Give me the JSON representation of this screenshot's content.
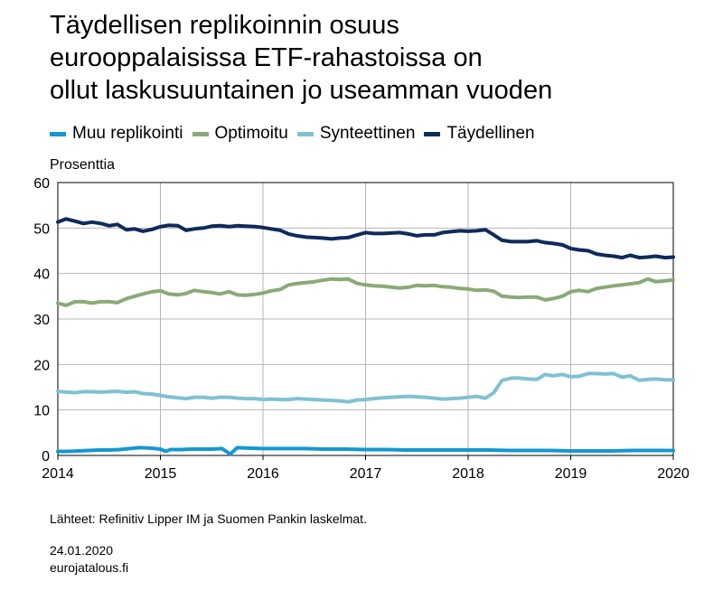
{
  "title_lines": [
    "Täydellisen replikoinnin osuus",
    "eurooppalaisissa ETF-rahastoissa on",
    "ollut laskusuuntainen jo useamman vuoden"
  ],
  "unit_label": "Prosenttia",
  "source_note": "Lähteet: Refinitiv Lipper IM ja Suomen Pankin laskelmat.",
  "date": "24.01.2020",
  "website": "eurojatalous.fi",
  "chart_data": {
    "type": "line",
    "xlim": [
      2014,
      2020
    ],
    "ylim": [
      0,
      60
    ],
    "x_ticks": [
      2014,
      2015,
      2016,
      2017,
      2018,
      2019,
      2020
    ],
    "y_ticks": [
      0,
      10,
      20,
      30,
      40,
      50,
      60
    ],
    "grid": true,
    "legend_position": "top",
    "series": [
      {
        "name": "Muu replikointi",
        "color": "#1597d4",
        "points": [
          [
            2014.0,
            0.9
          ],
          [
            2014.1,
            0.9
          ],
          [
            2014.2,
            1.0
          ],
          [
            2014.3,
            1.1
          ],
          [
            2014.4,
            1.2
          ],
          [
            2014.5,
            1.2
          ],
          [
            2014.6,
            1.3
          ],
          [
            2014.7,
            1.5
          ],
          [
            2014.8,
            1.7
          ],
          [
            2014.9,
            1.6
          ],
          [
            2015.0,
            1.4
          ],
          [
            2015.05,
            0.9
          ],
          [
            2015.1,
            1.3
          ],
          [
            2015.2,
            1.3
          ],
          [
            2015.3,
            1.4
          ],
          [
            2015.4,
            1.4
          ],
          [
            2015.5,
            1.4
          ],
          [
            2015.6,
            1.5
          ],
          [
            2015.68,
            0.3
          ],
          [
            2015.75,
            1.7
          ],
          [
            2015.85,
            1.6
          ],
          [
            2016.0,
            1.5
          ],
          [
            2016.2,
            1.5
          ],
          [
            2016.4,
            1.5
          ],
          [
            2016.6,
            1.4
          ],
          [
            2016.8,
            1.4
          ],
          [
            2017.0,
            1.3
          ],
          [
            2017.2,
            1.3
          ],
          [
            2017.4,
            1.2
          ],
          [
            2017.6,
            1.2
          ],
          [
            2017.8,
            1.2
          ],
          [
            2018.0,
            1.2
          ],
          [
            2018.2,
            1.2
          ],
          [
            2018.4,
            1.1
          ],
          [
            2018.6,
            1.1
          ],
          [
            2018.8,
            1.1
          ],
          [
            2019.0,
            1.0
          ],
          [
            2019.2,
            1.0
          ],
          [
            2019.4,
            1.0
          ],
          [
            2019.6,
            1.1
          ],
          [
            2019.8,
            1.1
          ],
          [
            2020.0,
            1.1
          ]
        ]
      },
      {
        "name": "Optimoitu",
        "color": "#8aaa78",
        "points": [
          [
            2014.0,
            33.5
          ],
          [
            2014.08,
            33.0
          ],
          [
            2014.17,
            33.8
          ],
          [
            2014.25,
            33.8
          ],
          [
            2014.33,
            33.5
          ],
          [
            2014.42,
            33.8
          ],
          [
            2014.5,
            33.8
          ],
          [
            2014.58,
            33.6
          ],
          [
            2014.67,
            34.5
          ],
          [
            2014.75,
            35.0
          ],
          [
            2014.83,
            35.5
          ],
          [
            2014.92,
            36.0
          ],
          [
            2015.0,
            36.2
          ],
          [
            2015.08,
            35.5
          ],
          [
            2015.17,
            35.3
          ],
          [
            2015.25,
            35.6
          ],
          [
            2015.33,
            36.3
          ],
          [
            2015.42,
            36.0
          ],
          [
            2015.5,
            35.8
          ],
          [
            2015.58,
            35.5
          ],
          [
            2015.67,
            36.0
          ],
          [
            2015.75,
            35.3
          ],
          [
            2015.83,
            35.2
          ],
          [
            2015.92,
            35.4
          ],
          [
            2016.0,
            35.7
          ],
          [
            2016.08,
            36.2
          ],
          [
            2016.17,
            36.5
          ],
          [
            2016.25,
            37.5
          ],
          [
            2016.33,
            37.8
          ],
          [
            2016.42,
            38.0
          ],
          [
            2016.5,
            38.2
          ],
          [
            2016.58,
            38.5
          ],
          [
            2016.67,
            38.8
          ],
          [
            2016.75,
            38.7
          ],
          [
            2016.83,
            38.8
          ],
          [
            2016.92,
            37.8
          ],
          [
            2017.0,
            37.5
          ],
          [
            2017.08,
            37.3
          ],
          [
            2017.17,
            37.2
          ],
          [
            2017.25,
            37.0
          ],
          [
            2017.33,
            36.8
          ],
          [
            2017.42,
            37.0
          ],
          [
            2017.5,
            37.4
          ],
          [
            2017.58,
            37.3
          ],
          [
            2017.67,
            37.4
          ],
          [
            2017.75,
            37.1
          ],
          [
            2017.83,
            37.0
          ],
          [
            2017.92,
            36.7
          ],
          [
            2018.0,
            36.6
          ],
          [
            2018.08,
            36.3
          ],
          [
            2018.17,
            36.4
          ],
          [
            2018.25,
            36.1
          ],
          [
            2018.33,
            35.0
          ],
          [
            2018.42,
            34.8
          ],
          [
            2018.5,
            34.7
          ],
          [
            2018.58,
            34.8
          ],
          [
            2018.67,
            34.8
          ],
          [
            2018.75,
            34.2
          ],
          [
            2018.83,
            34.5
          ],
          [
            2018.92,
            35.0
          ],
          [
            2019.0,
            36.0
          ],
          [
            2019.08,
            36.3
          ],
          [
            2019.17,
            36.0
          ],
          [
            2019.25,
            36.7
          ],
          [
            2019.33,
            37.0
          ],
          [
            2019.42,
            37.3
          ],
          [
            2019.5,
            37.5
          ],
          [
            2019.58,
            37.7
          ],
          [
            2019.67,
            38.0
          ],
          [
            2019.75,
            38.8
          ],
          [
            2019.83,
            38.2
          ],
          [
            2019.92,
            38.4
          ],
          [
            2020.0,
            38.6
          ]
        ]
      },
      {
        "name": "Synteettinen",
        "color": "#7fc2d1",
        "points": [
          [
            2014.0,
            14.1
          ],
          [
            2014.08,
            13.9
          ],
          [
            2014.17,
            13.8
          ],
          [
            2014.25,
            14.0
          ],
          [
            2014.33,
            14.0
          ],
          [
            2014.42,
            13.9
          ],
          [
            2014.5,
            14.0
          ],
          [
            2014.58,
            14.1
          ],
          [
            2014.67,
            13.9
          ],
          [
            2014.75,
            14.0
          ],
          [
            2014.83,
            13.6
          ],
          [
            2014.92,
            13.5
          ],
          [
            2015.0,
            13.2
          ],
          [
            2015.08,
            12.9
          ],
          [
            2015.17,
            12.7
          ],
          [
            2015.25,
            12.5
          ],
          [
            2015.33,
            12.8
          ],
          [
            2015.42,
            12.8
          ],
          [
            2015.5,
            12.6
          ],
          [
            2015.58,
            12.8
          ],
          [
            2015.67,
            12.8
          ],
          [
            2015.75,
            12.6
          ],
          [
            2015.83,
            12.5
          ],
          [
            2015.92,
            12.5
          ],
          [
            2016.0,
            12.3
          ],
          [
            2016.08,
            12.4
          ],
          [
            2016.17,
            12.3
          ],
          [
            2016.25,
            12.3
          ],
          [
            2016.33,
            12.5
          ],
          [
            2016.42,
            12.4
          ],
          [
            2016.5,
            12.3
          ],
          [
            2016.58,
            12.2
          ],
          [
            2016.67,
            12.1
          ],
          [
            2016.75,
            12.0
          ],
          [
            2016.83,
            11.8
          ],
          [
            2016.92,
            12.2
          ],
          [
            2017.0,
            12.3
          ],
          [
            2017.08,
            12.5
          ],
          [
            2017.17,
            12.7
          ],
          [
            2017.25,
            12.8
          ],
          [
            2017.33,
            12.9
          ],
          [
            2017.42,
            13.0
          ],
          [
            2017.5,
            12.9
          ],
          [
            2017.58,
            12.8
          ],
          [
            2017.67,
            12.6
          ],
          [
            2017.75,
            12.4
          ],
          [
            2017.83,
            12.5
          ],
          [
            2017.92,
            12.6
          ],
          [
            2018.0,
            12.8
          ],
          [
            2018.08,
            13.0
          ],
          [
            2018.17,
            12.6
          ],
          [
            2018.25,
            13.8
          ],
          [
            2018.33,
            16.5
          ],
          [
            2018.42,
            17.0
          ],
          [
            2018.5,
            17.0
          ],
          [
            2018.58,
            16.8
          ],
          [
            2018.67,
            16.7
          ],
          [
            2018.75,
            17.8
          ],
          [
            2018.83,
            17.5
          ],
          [
            2018.92,
            17.8
          ],
          [
            2019.0,
            17.3
          ],
          [
            2019.08,
            17.4
          ],
          [
            2019.17,
            18.0
          ],
          [
            2019.25,
            18.0
          ],
          [
            2019.33,
            17.9
          ],
          [
            2019.42,
            18.0
          ],
          [
            2019.5,
            17.2
          ],
          [
            2019.58,
            17.5
          ],
          [
            2019.67,
            16.5
          ],
          [
            2019.75,
            16.7
          ],
          [
            2019.83,
            16.8
          ],
          [
            2019.92,
            16.6
          ],
          [
            2020.0,
            16.6
          ]
        ]
      },
      {
        "name": "Täydellinen",
        "color": "#102a5b",
        "points": [
          [
            2014.0,
            51.3
          ],
          [
            2014.08,
            52.0
          ],
          [
            2014.17,
            51.5
          ],
          [
            2014.25,
            51.0
          ],
          [
            2014.33,
            51.3
          ],
          [
            2014.42,
            51.0
          ],
          [
            2014.5,
            50.5
          ],
          [
            2014.58,
            50.8
          ],
          [
            2014.67,
            49.6
          ],
          [
            2014.75,
            49.8
          ],
          [
            2014.83,
            49.3
          ],
          [
            2014.92,
            49.7
          ],
          [
            2015.0,
            50.3
          ],
          [
            2015.08,
            50.6
          ],
          [
            2015.17,
            50.5
          ],
          [
            2015.25,
            49.5
          ],
          [
            2015.33,
            49.8
          ],
          [
            2015.42,
            50.0
          ],
          [
            2015.5,
            50.4
          ],
          [
            2015.58,
            50.5
          ],
          [
            2015.67,
            50.3
          ],
          [
            2015.75,
            50.5
          ],
          [
            2015.83,
            50.4
          ],
          [
            2015.92,
            50.3
          ],
          [
            2016.0,
            50.1
          ],
          [
            2016.08,
            49.8
          ],
          [
            2016.17,
            49.5
          ],
          [
            2016.25,
            48.7
          ],
          [
            2016.33,
            48.3
          ],
          [
            2016.42,
            48.0
          ],
          [
            2016.5,
            47.9
          ],
          [
            2016.58,
            47.8
          ],
          [
            2016.67,
            47.6
          ],
          [
            2016.75,
            47.8
          ],
          [
            2016.83,
            47.9
          ],
          [
            2016.92,
            48.5
          ],
          [
            2017.0,
            49.0
          ],
          [
            2017.08,
            48.8
          ],
          [
            2017.17,
            48.8
          ],
          [
            2017.25,
            48.9
          ],
          [
            2017.33,
            49.0
          ],
          [
            2017.42,
            48.7
          ],
          [
            2017.5,
            48.3
          ],
          [
            2017.58,
            48.5
          ],
          [
            2017.67,
            48.5
          ],
          [
            2017.75,
            49.0
          ],
          [
            2017.83,
            49.2
          ],
          [
            2017.92,
            49.4
          ],
          [
            2018.0,
            49.3
          ],
          [
            2018.08,
            49.4
          ],
          [
            2018.17,
            49.6
          ],
          [
            2018.25,
            48.5
          ],
          [
            2018.33,
            47.3
          ],
          [
            2018.42,
            47.0
          ],
          [
            2018.5,
            47.0
          ],
          [
            2018.58,
            47.0
          ],
          [
            2018.67,
            47.2
          ],
          [
            2018.75,
            46.8
          ],
          [
            2018.83,
            46.6
          ],
          [
            2018.92,
            46.3
          ],
          [
            2019.0,
            45.5
          ],
          [
            2019.08,
            45.2
          ],
          [
            2019.17,
            45.0
          ],
          [
            2019.25,
            44.3
          ],
          [
            2019.33,
            44.0
          ],
          [
            2019.42,
            43.8
          ],
          [
            2019.5,
            43.5
          ],
          [
            2019.58,
            44.0
          ],
          [
            2019.67,
            43.5
          ],
          [
            2019.75,
            43.6
          ],
          [
            2019.83,
            43.8
          ],
          [
            2019.92,
            43.5
          ],
          [
            2020.0,
            43.6
          ]
        ]
      }
    ]
  }
}
